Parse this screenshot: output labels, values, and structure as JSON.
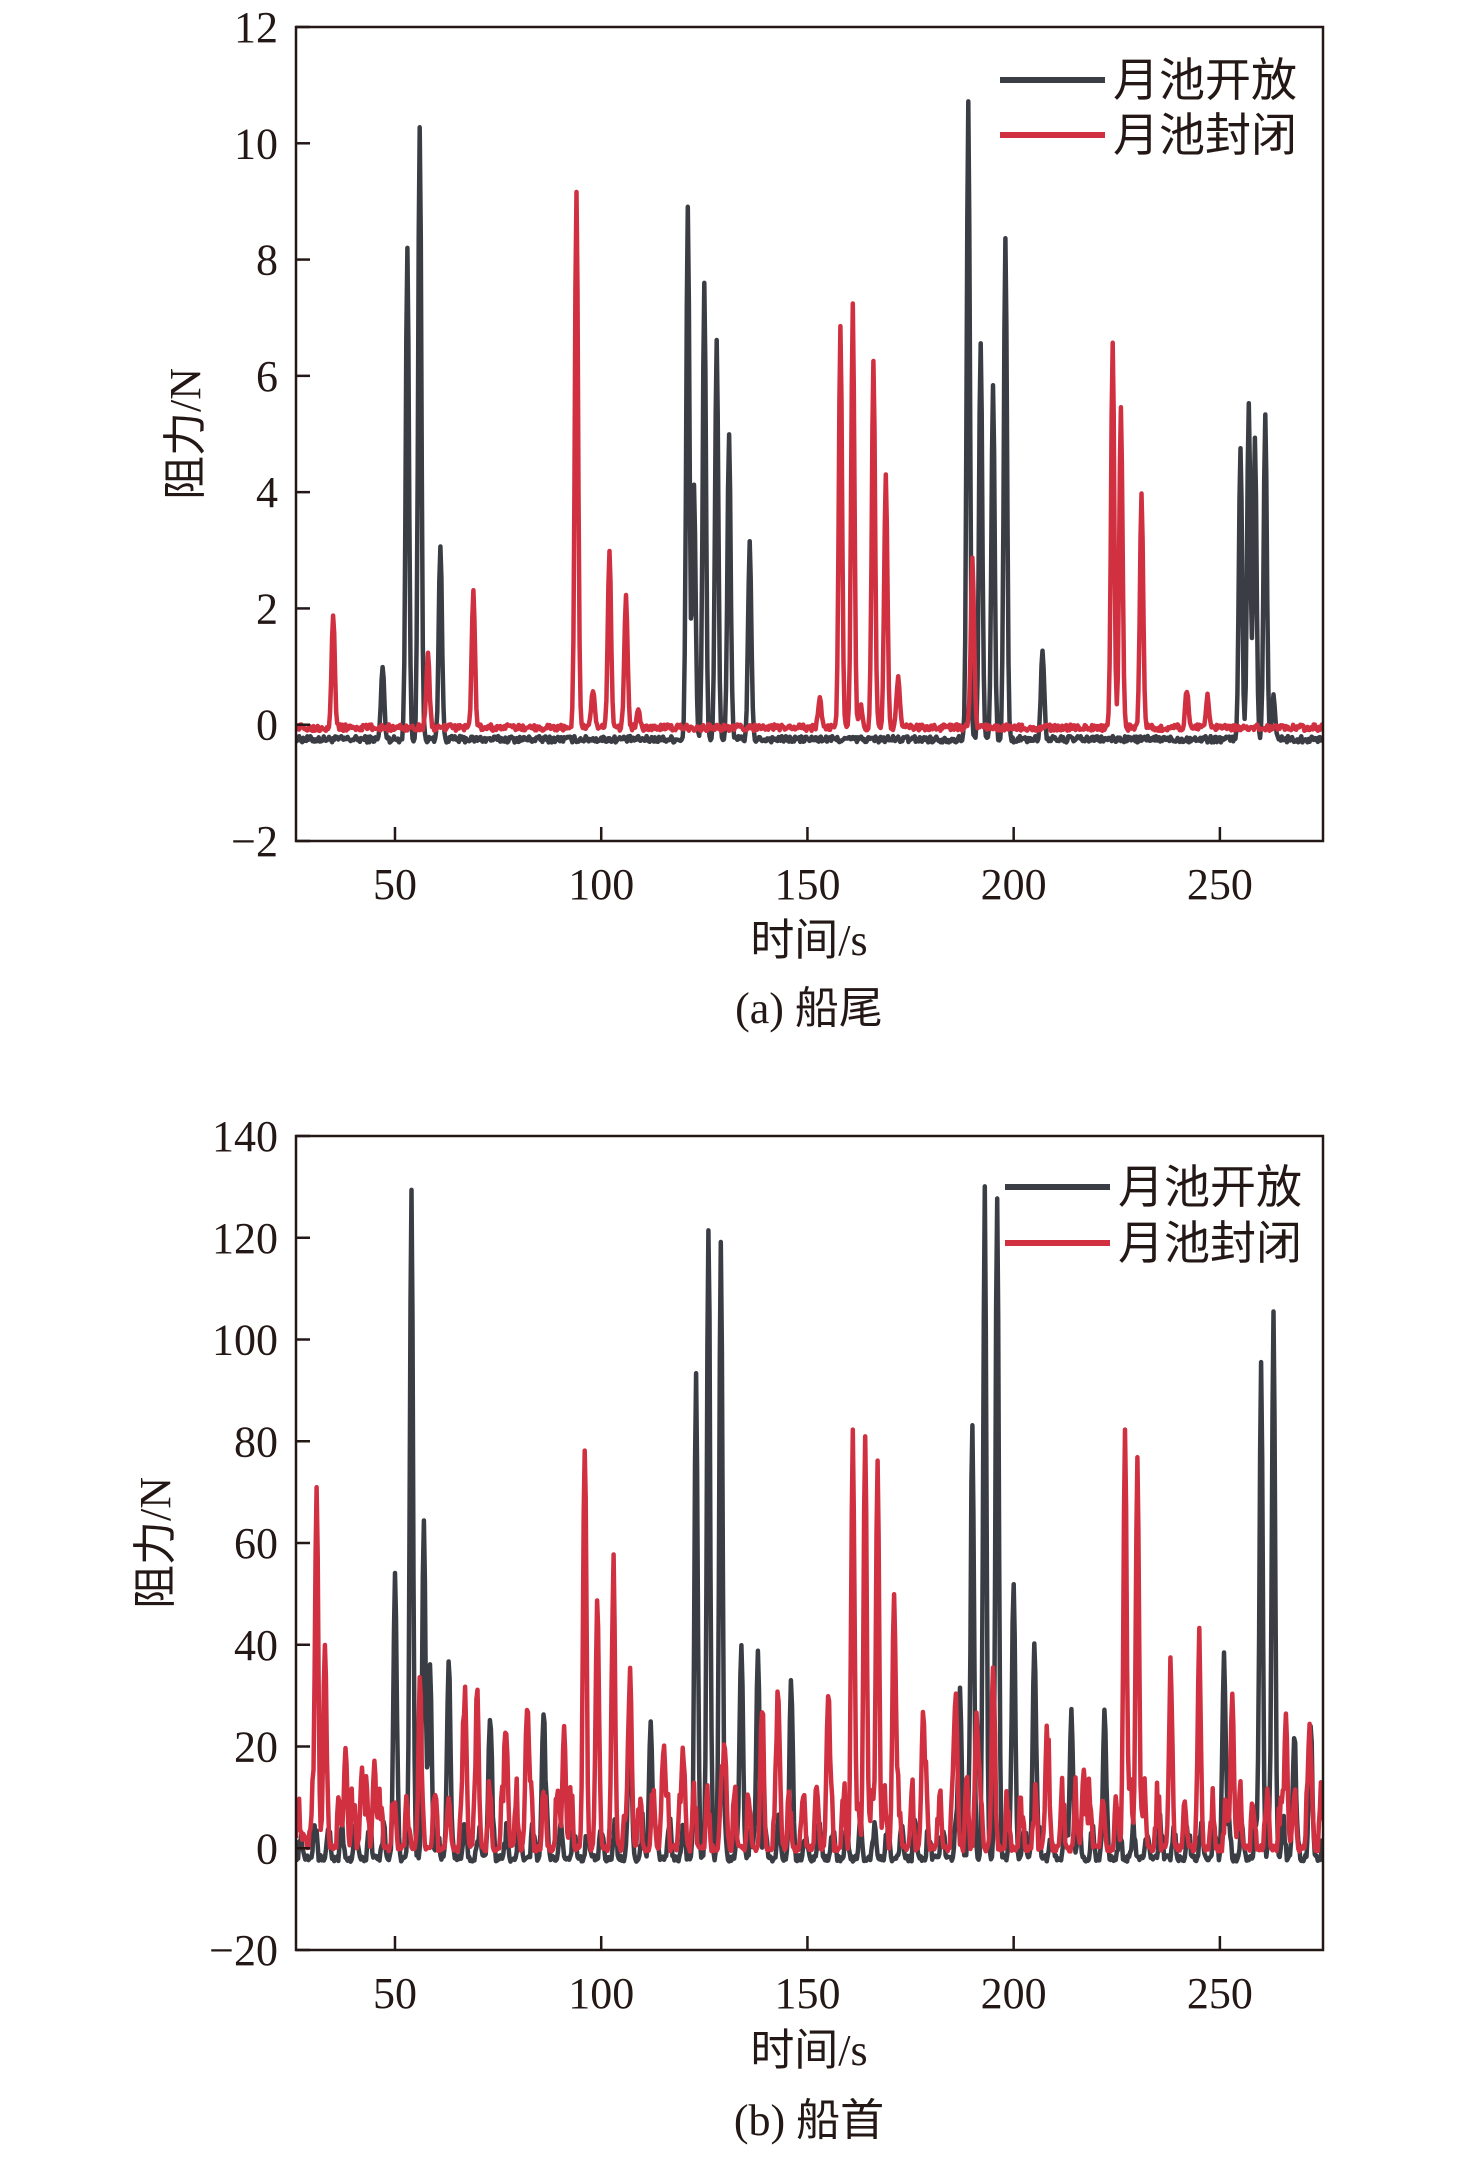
{
  "colors": {
    "open": "#3a3d44",
    "closed": "#d03040",
    "axis": "#231815"
  },
  "chart_data": [
    {
      "type": "line",
      "caption": "(a) 船尾",
      "xlabel": "时间/s",
      "ylabel": "阻力/N",
      "xlim": [
        26,
        275
      ],
      "ylim": [
        -2,
        12
      ],
      "xticks": [
        50,
        100,
        150,
        200,
        250
      ],
      "yticks": [
        -2,
        0,
        2,
        4,
        6,
        8,
        10,
        12
      ],
      "ytick_labels": [
        "−2",
        "0",
        "2",
        "4",
        "6",
        "8",
        "10",
        "12"
      ],
      "legend_position": "top-right",
      "series": [
        {
          "name": "月池开放",
          "color": "#3a3d44",
          "baseline": -0.25,
          "peaks": [
            [
              47,
              1.0
            ],
            [
              53,
              8.2
            ],
            [
              56,
              10.3
            ],
            [
              61,
              3.1
            ],
            [
              121,
              8.9
            ],
            [
              122.5,
              4.1
            ],
            [
              125,
              7.6
            ],
            [
              128,
              6.6
            ],
            [
              131,
              5.0
            ],
            [
              136,
              3.1
            ],
            [
              189,
              10.7
            ],
            [
              192,
              6.6
            ],
            [
              195,
              5.8
            ],
            [
              198,
              8.4
            ],
            [
              207,
              1.3
            ],
            [
              255,
              4.8
            ],
            [
              257,
              5.5
            ],
            [
              258.5,
              4.9
            ],
            [
              261,
              5.3
            ],
            [
              263,
              0.5
            ]
          ]
        },
        {
          "name": "月池封闭",
          "color": "#d03040",
          "baseline": -0.05,
          "peaks": [
            [
              35,
              1.9
            ],
            [
              58,
              1.2
            ],
            [
              69,
              2.3
            ],
            [
              94,
              9.2
            ],
            [
              98,
              0.6
            ],
            [
              102,
              3.0
            ],
            [
              106,
              2.2
            ],
            [
              109,
              0.3
            ],
            [
              153,
              0.5
            ],
            [
              158,
              6.9
            ],
            [
              161,
              7.2
            ],
            [
              163,
              0.3
            ],
            [
              166,
              6.3
            ],
            [
              169,
              4.3
            ],
            [
              172,
              0.8
            ],
            [
              190,
              2.9
            ],
            [
              224,
              6.6
            ],
            [
              226,
              5.5
            ],
            [
              231,
              4.0
            ],
            [
              242,
              0.6
            ],
            [
              247,
              0.5
            ]
          ]
        }
      ]
    },
    {
      "type": "line",
      "caption": "(b) 船首",
      "xlabel": "时间/s",
      "ylabel": "阻力/N",
      "xlim": [
        26,
        275
      ],
      "ylim": [
        -20,
        140
      ],
      "xticks": [
        50,
        100,
        150,
        200,
        250
      ],
      "yticks": [
        -20,
        0,
        20,
        40,
        60,
        80,
        100,
        120,
        140
      ],
      "ytick_labels": [
        "−20",
        "0",
        "20",
        "40",
        "60",
        "80",
        "100",
        "120",
        "140"
      ],
      "legend_position": "top-right",
      "series": [
        {
          "name": "月池开放",
          "color": "#3a3d44",
          "baseline": -2,
          "peaks": [
            [
              50,
              52
            ],
            [
              54,
              123
            ],
            [
              57,
              60
            ],
            [
              58.5,
              36
            ],
            [
              63,
              35
            ],
            [
              73,
              24
            ],
            [
              86,
              26
            ],
            [
              107,
              26
            ],
            [
              112,
              25
            ],
            [
              123,
              87
            ],
            [
              126,
              120
            ],
            [
              129,
              119
            ],
            [
              134,
              40
            ],
            [
              138,
              39
            ],
            [
              146,
              30
            ],
            [
              187,
              31
            ],
            [
              190,
              82
            ],
            [
              193,
              124
            ],
            [
              196,
              123
            ],
            [
              200,
              52
            ],
            [
              205,
              40
            ],
            [
              214,
              27
            ],
            [
              222,
              23
            ],
            [
              251,
              38
            ],
            [
              260,
              95
            ],
            [
              263,
              105
            ],
            [
              268,
              20
            ],
            [
              272,
              20
            ]
          ]
        },
        {
          "name": "月池封闭",
          "color": "#d03040",
          "baseline": 0,
          "peaks": [
            [
              28,
              3
            ],
            [
              31,
              71
            ],
            [
              33,
              30
            ],
            [
              38,
              20
            ],
            [
              42,
              16
            ],
            [
              45,
              17
            ],
            [
              56,
              23
            ],
            [
              67,
              29
            ],
            [
              70,
              22
            ],
            [
              77,
              22
            ],
            [
              82,
              27
            ],
            [
              91,
              24
            ],
            [
              96,
              72
            ],
            [
              99,
              41
            ],
            [
              103,
              48
            ],
            [
              107,
              35
            ],
            [
              115,
              18
            ],
            [
              120,
              17
            ],
            [
              130,
              20
            ],
            [
              139,
              20
            ],
            [
              143,
              26
            ],
            [
              155,
              28
            ],
            [
              161,
              82
            ],
            [
              164,
              81
            ],
            [
              167,
              76
            ],
            [
              171,
              50
            ],
            [
              178,
              25
            ],
            [
              186,
              27
            ],
            [
              191,
              26
            ],
            [
              195,
              27
            ],
            [
              208,
              18
            ],
            [
              217,
              16
            ],
            [
              227,
              82
            ],
            [
              230,
              77
            ],
            [
              238,
              26
            ],
            [
              245,
              30
            ],
            [
              253,
              30
            ],
            [
              266,
              26
            ],
            [
              272,
              18
            ]
          ]
        }
      ]
    }
  ]
}
